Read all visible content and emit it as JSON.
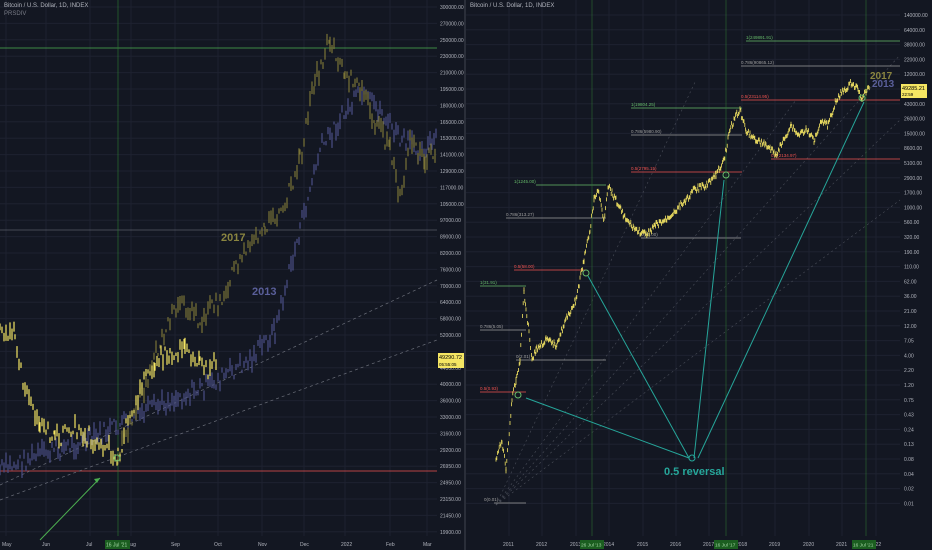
{
  "left_chart": {
    "header": "Bitcoin / U.S. Dollar, 1D, INDEX",
    "indicator": "PRSDIV",
    "watermark_2017": "2017",
    "watermark_2013": "2013",
    "price_badge": "49290.72",
    "price_badge_sub": "05:55:05",
    "x_labels": [
      "May",
      "Jun",
      "Jul",
      "Aug",
      "Sep",
      "Oct",
      "Nov",
      "Dec",
      "2022",
      "Feb",
      "Mar"
    ],
    "x_highlight": "16 Jul '21",
    "y_labels": [
      "300000.00",
      "270000.00",
      "250000.00",
      "230000.00",
      "210000.00",
      "195000.00",
      "180000.00",
      "165000.00",
      "153000.00",
      "141000.00",
      "129000.00",
      "117000.00",
      "105000.00",
      "97000.00",
      "89000.00",
      "82000.00",
      "76000.00",
      "70000.00",
      "64000.00",
      "58000.00",
      "52000.00",
      "49290.72",
      "44000.00",
      "40000.00",
      "36000.00",
      "33000.00",
      "31600.00",
      "29200.00",
      "26950.00",
      "24950.00",
      "23150.00",
      "21450.00",
      "19900.00"
    ]
  },
  "right_chart": {
    "header": "Bitcoin / U.S. Dollar, 1D, INDEX",
    "watermark_2017": "2017",
    "watermark_2013": "2013",
    "price_badge": "49285.21",
    "price_badge_sub": "22:59",
    "reversal_label": "0.5 reversal",
    "x_labels": [
      "2011",
      "2012",
      "2013",
      "2014",
      "2015",
      "2016",
      "2017",
      "2018",
      "2019",
      "2020",
      "2021",
      "2022"
    ],
    "x_highlights": [
      "26 Jul '13",
      "16 Jul '17",
      "16 Jul '21"
    ],
    "y_labels": [
      "140000.00",
      "64000.00",
      "38000.00",
      "22000.00",
      "12000.00",
      "74000.00",
      "43000.00",
      "26000.00",
      "15000.00",
      "8600.00",
      "5100.00",
      "2900.00",
      "1700.00",
      "1000.00",
      "560.00",
      "320.00",
      "190.00",
      "110.00",
      "62.00",
      "36.00",
      "21.00",
      "12.00",
      "7.05",
      "4.00",
      "2.20",
      "1.20",
      "0.75",
      "0.43",
      "0.24",
      "0.13",
      "0.08",
      "0.04",
      "0.02",
      "0.01"
    ],
    "fib_labels": [
      {
        "text": "1(249891.91)",
        "color": "#66bb6a"
      },
      {
        "text": "0.786(90865.12)",
        "color": "#9e9e9e"
      },
      {
        "text": "0.5(23114.95)",
        "color": "#ef5350"
      },
      {
        "text": "1(19804.25)",
        "color": "#66bb6a"
      },
      {
        "text": "0.786(5980.90)",
        "color": "#9e9e9e"
      },
      {
        "text": "0.5(2134.97)",
        "color": "#ef5350"
      },
      {
        "text": "0.5(2795.15)",
        "color": "#ef5350"
      },
      {
        "text": "1(1245.00)",
        "color": "#66bb6a"
      },
      {
        "text": "0.786(313.27)",
        "color": "#9e9e9e"
      },
      {
        "text": "0(65.00)",
        "color": "#9e9e9e"
      },
      {
        "text": "0.5(58.00)",
        "color": "#ef5350"
      },
      {
        "text": "1(31.91)",
        "color": "#66bb6a"
      },
      {
        "text": "0.786(5.05)",
        "color": "#9e9e9e"
      },
      {
        "text": "0(2.01)",
        "color": "#9e9e9e"
      },
      {
        "text": "0.5(0.93)",
        "color": "#ef5350"
      },
      {
        "text": "0(0.01)",
        "color": "#9e9e9e"
      }
    ]
  }
}
